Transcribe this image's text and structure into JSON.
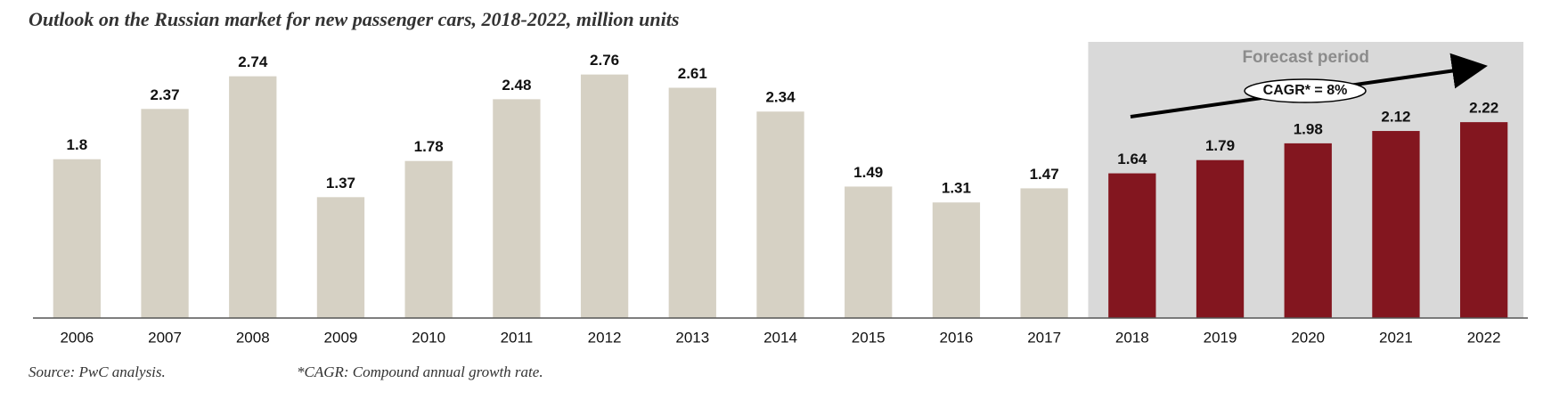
{
  "chart_data": {
    "type": "bar",
    "title": "Outlook on the Russian market for new passenger cars, 2018-2022, million units",
    "categories": [
      "2006",
      "2007",
      "2008",
      "2009",
      "2010",
      "2011",
      "2012",
      "2013",
      "2014",
      "2015",
      "2016",
      "2017",
      "2018",
      "2019",
      "2020",
      "2021",
      "2022"
    ],
    "values": [
      1.8,
      2.37,
      2.74,
      1.37,
      1.78,
      2.48,
      2.76,
      2.61,
      2.34,
      1.49,
      1.31,
      1.47,
      1.64,
      1.79,
      1.98,
      2.12,
      2.22
    ],
    "bar_colors": [
      "#d6d1c4",
      "#d6d1c4",
      "#d6d1c4",
      "#d6d1c4",
      "#d6d1c4",
      "#d6d1c4",
      "#d6d1c4",
      "#d6d1c4",
      "#d6d1c4",
      "#d6d1c4",
      "#d6d1c4",
      "#d6d1c4",
      "#83161f",
      "#83161f",
      "#83161f",
      "#83161f",
      "#83161f"
    ],
    "ylim": [
      0,
      3.13
    ],
    "shaded_region": {
      "label": "Forecast period",
      "from": "2018",
      "to": "2022",
      "color": "#d9d9d9"
    },
    "trend_annotation": "CAGR* = 8%",
    "source": "Source: PwC analysis.",
    "footnote": "*CAGR: Compound annual growth rate."
  }
}
